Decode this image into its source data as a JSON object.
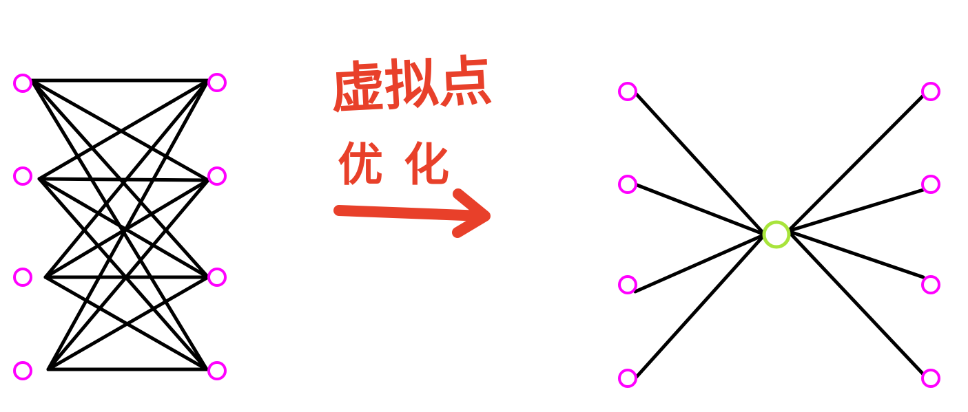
{
  "annotation": {
    "line1": "虚拟点",
    "line2": "优化",
    "color": "#e8402a"
  },
  "colors": {
    "node": "#ff00ff",
    "virtual_node": "#a8e43c",
    "edge": "#000000",
    "arrow": "#e8402a"
  },
  "left_graph": {
    "left_nodes": 4,
    "right_nodes": 4,
    "connection": "complete-bipartite"
  },
  "right_graph": {
    "outer_nodes": 8,
    "virtual_nodes": 1,
    "connection": "star-through-virtual-node"
  },
  "arrow_icon": "right-arrow"
}
